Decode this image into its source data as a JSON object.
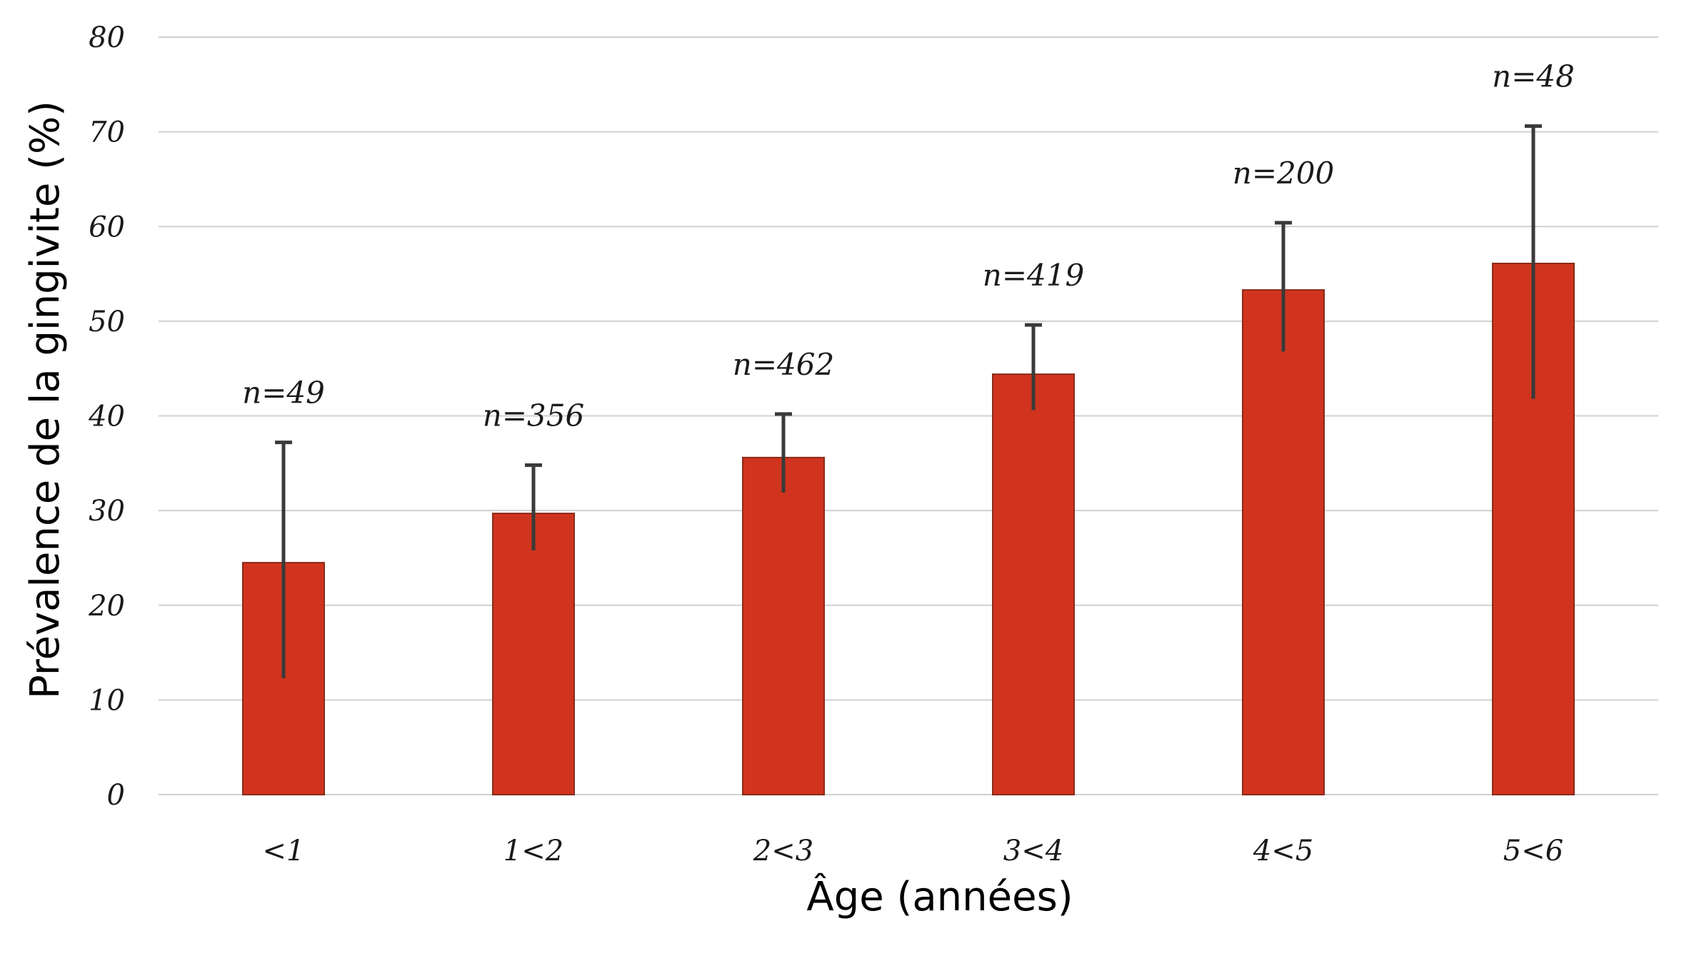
{
  "chart_data": {
    "type": "bar",
    "title": "",
    "xlabel": "Âge (années)",
    "ylabel": "Prévalence de la gingivite (%)",
    "ylim": [
      0,
      80
    ],
    "yticks": [
      0,
      10,
      20,
      30,
      40,
      50,
      60,
      70,
      80
    ],
    "grid": true,
    "categories": [
      "<1",
      "1<2",
      "2<3",
      "3<4",
      "4<5",
      "5<6"
    ],
    "series": [
      {
        "values": [
          24.5,
          29.7,
          35.6,
          44.4,
          53.3,
          56.1
        ],
        "error_lower": [
          12.3,
          25.8,
          31.9,
          40.6,
          46.8,
          41.8
        ],
        "error_upper": [
          37.2,
          34.8,
          40.2,
          49.6,
          60.4,
          70.6
        ]
      }
    ],
    "annotations": [
      "n=49",
      "n=356",
      "n=462",
      "n=419",
      "n=200",
      "n=48"
    ],
    "colors": {
      "bar": "#d0341f",
      "bar_edge": "#8a2a18",
      "error_bar": "#3a3a3a",
      "grid": "#d0d0d0"
    }
  }
}
